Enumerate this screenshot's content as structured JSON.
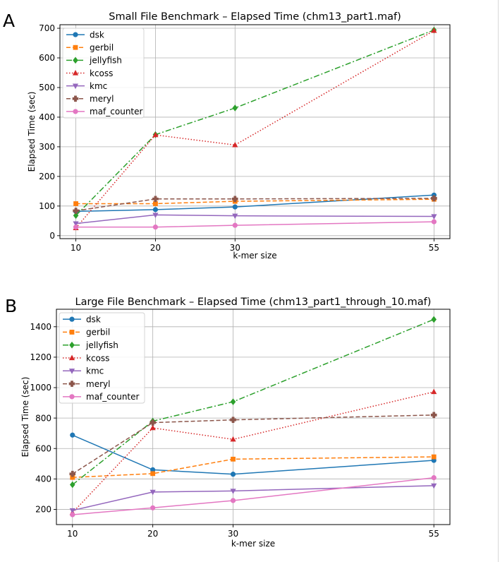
{
  "panel_letters": [
    "A",
    "B"
  ],
  "chart_data": [
    {
      "type": "line",
      "title": "Small File Benchmark – Elapsed Time (chm13_part1.maf)",
      "xlabel": "k-mer size",
      "ylabel": "Elapsed Time (sec)",
      "x": [
        10,
        20,
        30,
        55
      ],
      "xlim": [
        8,
        57
      ],
      "ylim": [
        -10,
        712
      ],
      "xticks": [
        10,
        20,
        30,
        55
      ],
      "yticks": [
        0,
        100,
        200,
        300,
        400,
        500,
        600,
        700
      ],
      "grid": true,
      "legend_position": "top-left",
      "series": [
        {
          "name": "dsk",
          "values": [
            82,
            88,
            97,
            137
          ],
          "color": "#1f77b4",
          "dash": "solid",
          "marker": "circle"
        },
        {
          "name": "gerbil",
          "values": [
            108,
            108,
            116,
            123
          ],
          "color": "#ff7f0e",
          "dash": "dashed",
          "marker": "square"
        },
        {
          "name": "jellyfish",
          "values": [
            68,
            341,
            431,
            694
          ],
          "color": "#2ca02c",
          "dash": "dashdot",
          "marker": "diamond"
        },
        {
          "name": "kcoss",
          "values": [
            26,
            340,
            306,
            692
          ],
          "color": "#d62728",
          "dash": "dotted",
          "marker": "triangle-up"
        },
        {
          "name": "kmc",
          "values": [
            41,
            70,
            67,
            65
          ],
          "color": "#9467bd",
          "dash": "solid",
          "marker": "triangle-down"
        },
        {
          "name": "meryl",
          "values": [
            84,
            124,
            124,
            126
          ],
          "color": "#8c564b",
          "dash": "dashed",
          "marker": "plus-filled"
        },
        {
          "name": "maf_counter",
          "values": [
            29,
            29,
            35,
            47
          ],
          "color": "#e377c2",
          "dash": "solid",
          "marker": "circle"
        }
      ]
    },
    {
      "type": "line",
      "title": "Large File Benchmark – Elapsed Time (chm13_part1_through_10.maf)",
      "xlabel": "k-mer size",
      "ylabel": "Elapsed Time (sec)",
      "x": [
        10,
        20,
        30,
        55
      ],
      "xlim": [
        8,
        57
      ],
      "ylim": [
        100,
        1515
      ],
      "xticks": [
        10,
        20,
        30,
        55
      ],
      "yticks": [
        200,
        400,
        600,
        800,
        1000,
        1200,
        1400
      ],
      "grid": true,
      "legend_position": "top-left",
      "series": [
        {
          "name": "dsk",
          "values": [
            688,
            460,
            431,
            522
          ],
          "color": "#1f77b4",
          "dash": "solid",
          "marker": "circle"
        },
        {
          "name": "gerbil",
          "values": [
            410,
            435,
            530,
            545
          ],
          "color": "#ff7f0e",
          "dash": "dashed",
          "marker": "square"
        },
        {
          "name": "jellyfish",
          "values": [
            362,
            780,
            907,
            1448
          ],
          "color": "#2ca02c",
          "dash": "dashdot",
          "marker": "diamond"
        },
        {
          "name": "kcoss",
          "values": [
            178,
            735,
            660,
            972
          ],
          "color": "#d62728",
          "dash": "dotted",
          "marker": "triangle-up"
        },
        {
          "name": "kmc",
          "values": [
            193,
            314,
            321,
            356
          ],
          "color": "#9467bd",
          "dash": "solid",
          "marker": "triangle-down"
        },
        {
          "name": "meryl",
          "values": [
            433,
            770,
            788,
            820
          ],
          "color": "#8c564b",
          "dash": "dashed",
          "marker": "plus-filled"
        },
        {
          "name": "maf_counter",
          "values": [
            165,
            210,
            258,
            408
          ],
          "color": "#e377c2",
          "dash": "solid",
          "marker": "circle"
        }
      ]
    }
  ]
}
